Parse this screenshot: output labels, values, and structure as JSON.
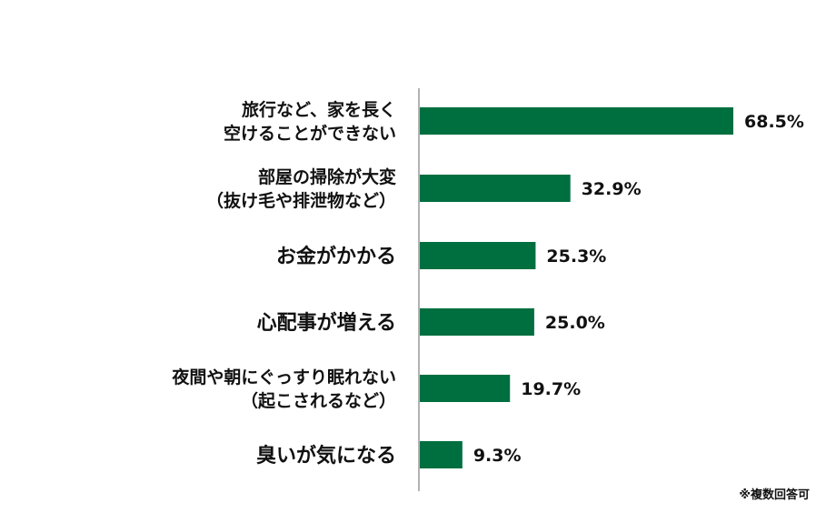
{
  "chart_data": {
    "type": "bar",
    "orientation": "horizontal",
    "categories": [
      [
        "旅行など、家を長く",
        "空けることができない"
      ],
      [
        "部屋の掃除が大変",
        "（抜け毛や排泄物など）"
      ],
      [
        "お金がかかる"
      ],
      [
        "心配事が増える"
      ],
      [
        "夜間や朝にぐっすり眠れない",
        "（起こされるなど）"
      ],
      [
        "臭いが気になる"
      ]
    ],
    "values": [
      68.5,
      32.9,
      25.3,
      25.0,
      19.7,
      9.3
    ],
    "value_labels": [
      "68.5%",
      "32.9%",
      "25.3%",
      "25.0%",
      "19.7%",
      "9.3%"
    ],
    "unit": "%",
    "xlim": [
      0,
      100
    ],
    "grid": false,
    "bar_color": "#006f40",
    "axis_color": "#999999"
  },
  "footnote": "※複数回答可"
}
